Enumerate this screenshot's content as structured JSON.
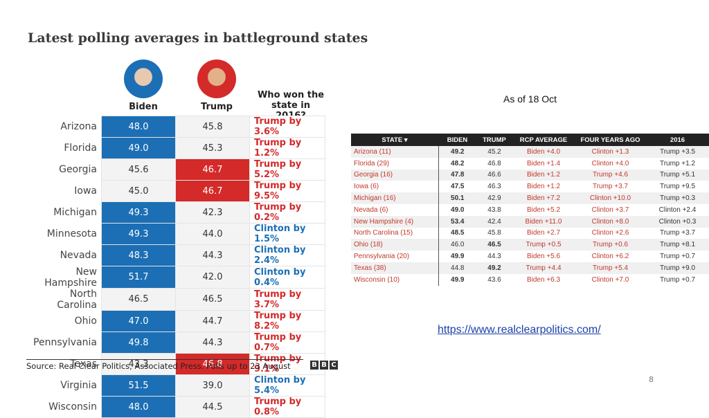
{
  "left": {
    "title": "Latest polling averages in battleground states",
    "headers": [
      "Biden",
      "Trump",
      "Who won the state in 2016?"
    ],
    "rows": [
      {
        "state": "Arizona",
        "biden": "48.0",
        "trump": "45.8",
        "winner": "Trump by 3.6%",
        "winner_color": "#d42a2a"
      },
      {
        "state": "Florida",
        "biden": "49.0",
        "trump": "45.3",
        "winner": "Trump by 1.2%",
        "winner_color": "#d42a2a"
      },
      {
        "state": "Georgia",
        "biden": "45.6",
        "trump": "46.7",
        "winner": "Trump by 5.2%",
        "winner_color": "#d42a2a"
      },
      {
        "state": "Iowa",
        "biden": "45.0",
        "trump": "46.7",
        "winner": "Trump by 9.5%",
        "winner_color": "#d42a2a"
      },
      {
        "state": "Michigan",
        "biden": "49.3",
        "trump": "42.3",
        "winner": "Trump by 0.2%",
        "winner_color": "#d42a2a"
      },
      {
        "state": "Minnesota",
        "biden": "49.3",
        "trump": "44.0",
        "winner": "Clinton by 1.5%",
        "winner_color": "#1c6fb5"
      },
      {
        "state": "Nevada",
        "biden": "48.3",
        "trump": "44.3",
        "winner": "Clinton by 2.4%",
        "winner_color": "#1c6fb5"
      },
      {
        "state": "New Hampshire",
        "biden": "51.7",
        "trump": "42.0",
        "winner": "Clinton by 0.4%",
        "winner_color": "#1c6fb5"
      },
      {
        "state": "North Carolina",
        "biden": "46.5",
        "trump": "46.5",
        "winner": "Trump by 3.7%",
        "winner_color": "#d42a2a"
      },
      {
        "state": "Ohio",
        "biden": "47.0",
        "trump": "44.7",
        "winner": "Trump by 8.2%",
        "winner_color": "#d42a2a"
      },
      {
        "state": "Pennsylvania",
        "biden": "49.8",
        "trump": "44.3",
        "winner": "Trump by 0.7%",
        "winner_color": "#d42a2a"
      },
      {
        "state": "Texas",
        "biden": "43.3",
        "trump": "46.8",
        "winner": "Trump by 9.1%",
        "winner_color": "#d42a2a"
      },
      {
        "state": "Virginia",
        "biden": "51.5",
        "trump": "39.0",
        "winner": "Clinton by 5.4%",
        "winner_color": "#1c6fb5"
      },
      {
        "state": "Wisconsin",
        "biden": "48.0",
        "trump": "44.5",
        "winner": "Trump by 0.8%",
        "winner_color": "#d42a2a"
      }
    ],
    "source": "Source: Real Clear Politics, Associated Press. Polls up to 23 August",
    "logo": [
      "B",
      "B",
      "C"
    ]
  },
  "right": {
    "note": "As of 18 Oct",
    "headers": [
      "STATE ▾",
      "BIDEN",
      "TRUMP",
      "RCP AVERAGE",
      "FOUR YEARS AGO",
      "2016"
    ],
    "rows": [
      [
        "Arizona (11)",
        "49.2",
        "45.2",
        "Biden +4.0",
        "Clinton +1.3",
        "Trump +3.5"
      ],
      [
        "Florida (29)",
        "48.2",
        "46.8",
        "Biden +1.4",
        "Clinton +4.0",
        "Trump +1.2"
      ],
      [
        "Georgia (16)",
        "47.8",
        "46.6",
        "Biden +1.2",
        "Trump +4.6",
        "Trump +5.1"
      ],
      [
        "Iowa (6)",
        "47.5",
        "46.3",
        "Biden +1.2",
        "Trump +3.7",
        "Trump +9.5"
      ],
      [
        "Michigan (16)",
        "50.1",
        "42.9",
        "Biden +7.2",
        "Clinton +10.0",
        "Trump +0.3"
      ],
      [
        "Nevada (6)",
        "49.0",
        "43.8",
        "Biden +5.2",
        "Clinton +3.7",
        "Clinton +2.4"
      ],
      [
        "New Hampshire (4)",
        "53.4",
        "42.4",
        "Biden +11.0",
        "Clinton +8.0",
        "Clinton +0.3"
      ],
      [
        "North Carolina (15)",
        "48.5",
        "45.8",
        "Biden +2.7",
        "Clinton +2.6",
        "Trump +3.7"
      ],
      [
        "Ohio (18)",
        "46.0",
        "46.5",
        "Trump +0.5",
        "Trump +0.6",
        "Trump +8.1"
      ],
      [
        "Pennsylvania (20)",
        "49.9",
        "44.3",
        "Biden +5.6",
        "Clinton +6.2",
        "Trump +0.7"
      ],
      [
        "Texas (38)",
        "44.8",
        "49.2",
        "Trump +4.4",
        "Trump +5.4",
        "Trump +9.0"
      ],
      [
        "Wisconsin (10)",
        "49.9",
        "43.6",
        "Biden +6.3",
        "Clinton +7.0",
        "Trump +0.7"
      ]
    ],
    "url": "https://www.realclearpolitics.com/"
  },
  "page_number": "8"
}
